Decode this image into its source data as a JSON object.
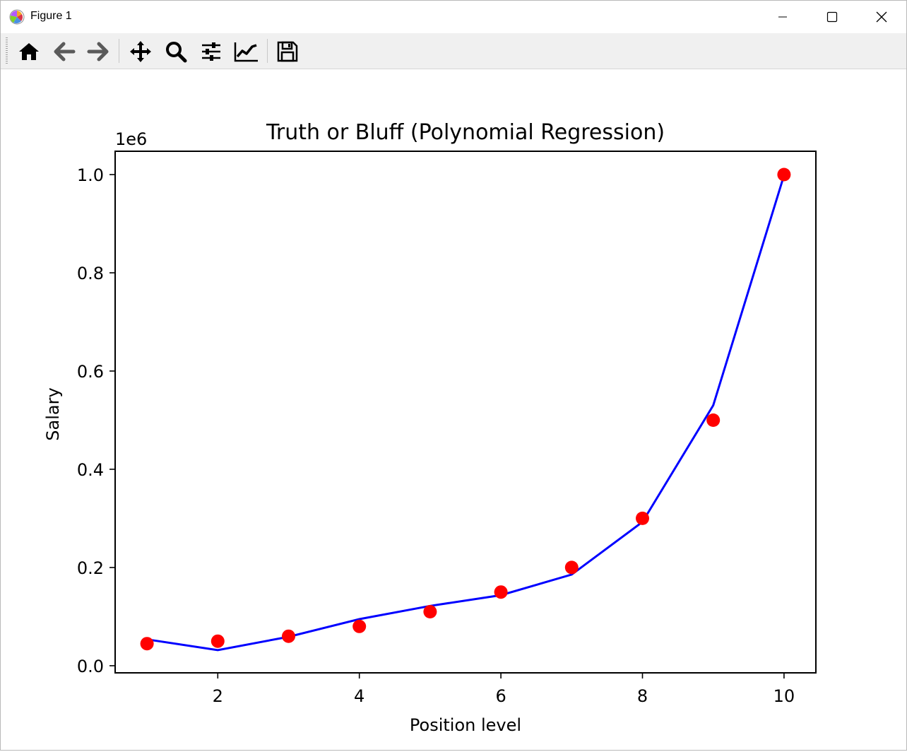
{
  "window": {
    "title": "Figure 1"
  },
  "toolbar": {
    "tools": [
      "home-icon",
      "back-arrow-icon",
      "forward-arrow-icon",
      "pan-icon",
      "zoom-icon",
      "configure-subplots-icon",
      "edit-axis-icon",
      "save-icon"
    ]
  },
  "chart_data": {
    "type": "scatter",
    "title": "Truth or Bluff (Polynomial Regression)",
    "xlabel": "Position level",
    "ylabel": "Salary",
    "y_offset_label": "1e6",
    "xlim": [
      0.55,
      10.45
    ],
    "ylim": [
      -0.0145,
      1.0475
    ],
    "x_ticks": [
      2,
      4,
      6,
      8,
      10
    ],
    "x_tick_labels": [
      "2",
      "4",
      "6",
      "8",
      "10"
    ],
    "y_ticks": [
      0.0,
      0.2,
      0.4,
      0.6,
      0.8,
      1.0
    ],
    "y_tick_labels": [
      "0.0",
      "0.2",
      "0.4",
      "0.6",
      "0.8",
      "1.0"
    ],
    "grid": false,
    "series": [
      {
        "kind": "scatter",
        "color": "#ff0000",
        "x": [
          1,
          2,
          3,
          4,
          5,
          6,
          7,
          8,
          9,
          10
        ],
        "y": [
          0.045,
          0.05,
          0.06,
          0.08,
          0.11,
          0.15,
          0.2,
          0.3,
          0.5,
          1.0
        ]
      },
      {
        "kind": "line",
        "color": "#0000ff",
        "x": [
          1,
          2,
          3,
          4,
          5,
          6,
          7,
          8,
          9,
          10
        ],
        "y": [
          0.0536,
          0.0319,
          0.0589,
          0.0948,
          0.1218,
          0.1437,
          0.1856,
          0.2928,
          0.5302,
          0.9984
        ]
      }
    ]
  }
}
